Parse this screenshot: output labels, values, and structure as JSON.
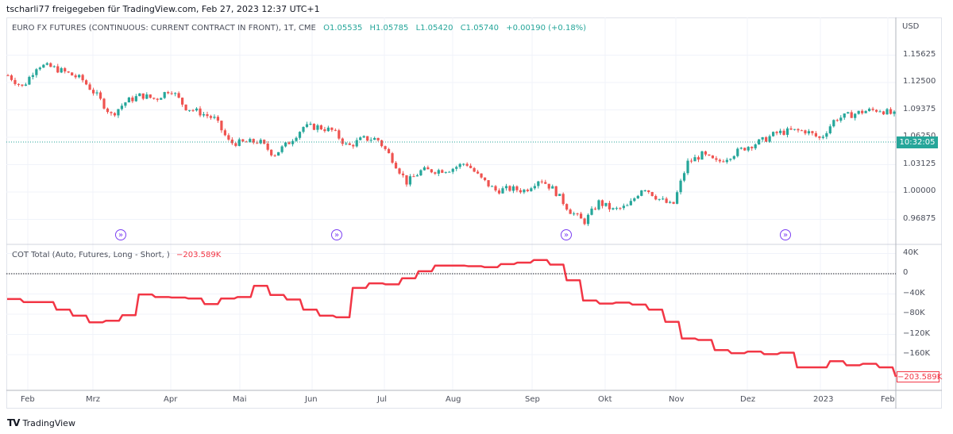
{
  "header": {
    "share_text": "tscharli77 freigegeben für TradingView.com, Feb 27, 2023 12:37 UTC+1"
  },
  "legend": {
    "symbol": "EURO FX FUTURES (CONTINUOUS: CURRENT CONTRACT IN FRONT), 1T, CME",
    "open": "O1.05535",
    "high": "H1.05785",
    "low": "L1.05420",
    "close": "C1.05740",
    "change": "+0.00190 (+0.18%)"
  },
  "price_axis": {
    "currency": "USD",
    "ticks": [
      "1.15625",
      "1.12500",
      "1.09375",
      "1.06250",
      "1.03125",
      "1.00000",
      "0.96875"
    ],
    "countdown": "10:32:05"
  },
  "indicator": {
    "name": "COT Total (Auto, Futures, Long - Short, )",
    "value": "−203.589K",
    "ticks": [
      "40K",
      "0",
      "−40K",
      "−80K",
      "−120K",
      "−160K"
    ],
    "last_label": "−203.589K"
  },
  "time_axis": {
    "labels": [
      "Feb",
      "Mrz",
      "Apr",
      "Mai",
      "Jun",
      "Jul",
      "Aug",
      "Sep",
      "Okt",
      "Nov",
      "Dez",
      "2023",
      "Feb"
    ]
  },
  "footer": {
    "brand": "TradingView"
  },
  "colors": {
    "up": "#26a69a",
    "down": "#ef5350",
    "cot_line": "#f23645",
    "event": "#7b3ff2"
  },
  "icons": {
    "event": "contract-rollover-icon",
    "logo": "tradingview-logo"
  },
  "chart_data": [
    {
      "type": "candlestick",
      "title": "EURO FX FUTURES (CONTINUOUS: CURRENT CONTRACT IN FRONT), 1T, CME",
      "ylabel": "USD",
      "ylim": [
        0.955,
        1.17
      ],
      "approx_close_path": [
        1.1332,
        1.1196,
        1.145,
        1.1422,
        1.1359,
        1.1287,
        1.1105,
        1.0879,
        1.1033,
        1.1105,
        1.106,
        1.1178,
        1.0969,
        1.0906,
        1.0834,
        1.0562,
        1.0562,
        1.058,
        1.0426,
        1.0562,
        1.0743,
        1.0743,
        1.0698,
        1.0516,
        1.0607,
        1.0607,
        1.0381,
        1.0109,
        1.0245,
        1.0245,
        1.0263,
        1.0335,
        1.0154,
        1.0018,
        1.0036,
        1.0018,
        1.0154,
        1.0018,
        0.9792,
        0.9656,
        0.9882,
        0.9792,
        0.9837,
        1.0063,
        0.9928,
        0.9837,
        1.0335,
        1.0426,
        1.0335,
        1.0426,
        1.0516,
        1.058,
        1.067,
        1.0698,
        1.0698,
        1.0607,
        1.0834,
        1.0879,
        1.0924,
        1.0942,
        1.0879
      ],
      "last": 1.0574
    },
    {
      "type": "line",
      "title": "COT Total (Auto, Futures, Long - Short, )",
      "ylim": [
        -215,
        50
      ],
      "unit": "K",
      "values": [
        -50,
        -56,
        -56,
        -71,
        -83,
        -96,
        -93,
        -82,
        -41,
        -46,
        -47,
        -49,
        -60,
        -49,
        -46,
        -24,
        -42,
        -51,
        -71,
        -83,
        -86,
        -28,
        -19,
        -21,
        -9,
        5,
        16,
        16,
        15,
        13,
        19,
        22,
        27,
        18,
        -13,
        -53,
        -59,
        -57,
        -61,
        -71,
        -95,
        -128,
        -131,
        -151,
        -157,
        -154,
        -159,
        -156,
        -185,
        -185,
        -173,
        -181,
        -178,
        -185,
        -203.589
      ]
    }
  ]
}
